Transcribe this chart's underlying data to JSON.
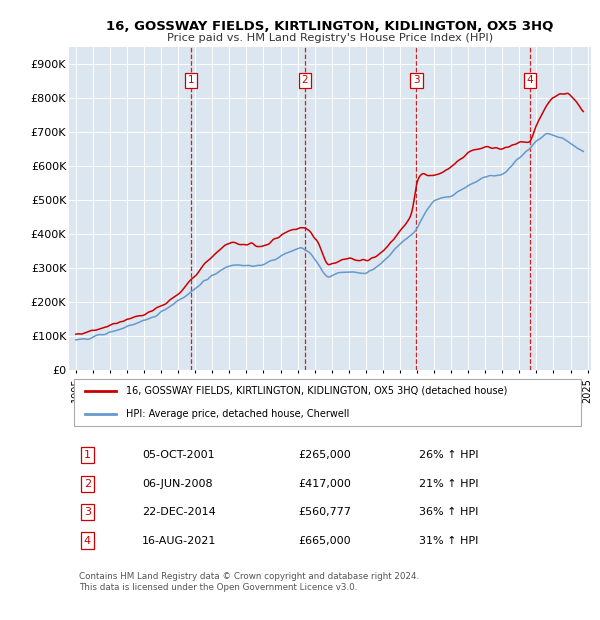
{
  "title": "16, GOSSWAY FIELDS, KIRTLINGTON, KIDLINGTON, OX5 3HQ",
  "subtitle": "Price paid vs. HM Land Registry's House Price Index (HPI)",
  "ylim": [
    0,
    950000
  ],
  "yticks": [
    0,
    100000,
    200000,
    300000,
    400000,
    500000,
    600000,
    700000,
    800000,
    900000
  ],
  "ytick_labels": [
    "£0",
    "£100K",
    "£200K",
    "£300K",
    "£400K",
    "£500K",
    "£600K",
    "£700K",
    "£800K",
    "£900K"
  ],
  "plot_bg_color": "#dce6f0",
  "line_color_red": "#cc0000",
  "line_color_blue": "#6699cc",
  "transaction_dates": [
    2001.75,
    2008.43,
    2014.97,
    2021.62
  ],
  "transaction_prices": [
    265000,
    417000,
    560777,
    665000
  ],
  "transaction_labels": [
    "1",
    "2",
    "3",
    "4"
  ],
  "transaction_info": [
    [
      "1",
      "05-OCT-2001",
      "£265,000",
      "26% ↑ HPI"
    ],
    [
      "2",
      "06-JUN-2008",
      "£417,000",
      "21% ↑ HPI"
    ],
    [
      "3",
      "22-DEC-2014",
      "£560,777",
      "36% ↑ HPI"
    ],
    [
      "4",
      "16-AUG-2021",
      "£665,000",
      "31% ↑ HPI"
    ]
  ],
  "legend_red_label": "16, GOSSWAY FIELDS, KIRTLINGTON, KIDLINGTON, OX5 3HQ (detached house)",
  "legend_blue_label": "HPI: Average price, detached house, Cherwell",
  "footer": "Contains HM Land Registry data © Crown copyright and database right 2024.\nThis data is licensed under the Open Government Licence v3.0."
}
